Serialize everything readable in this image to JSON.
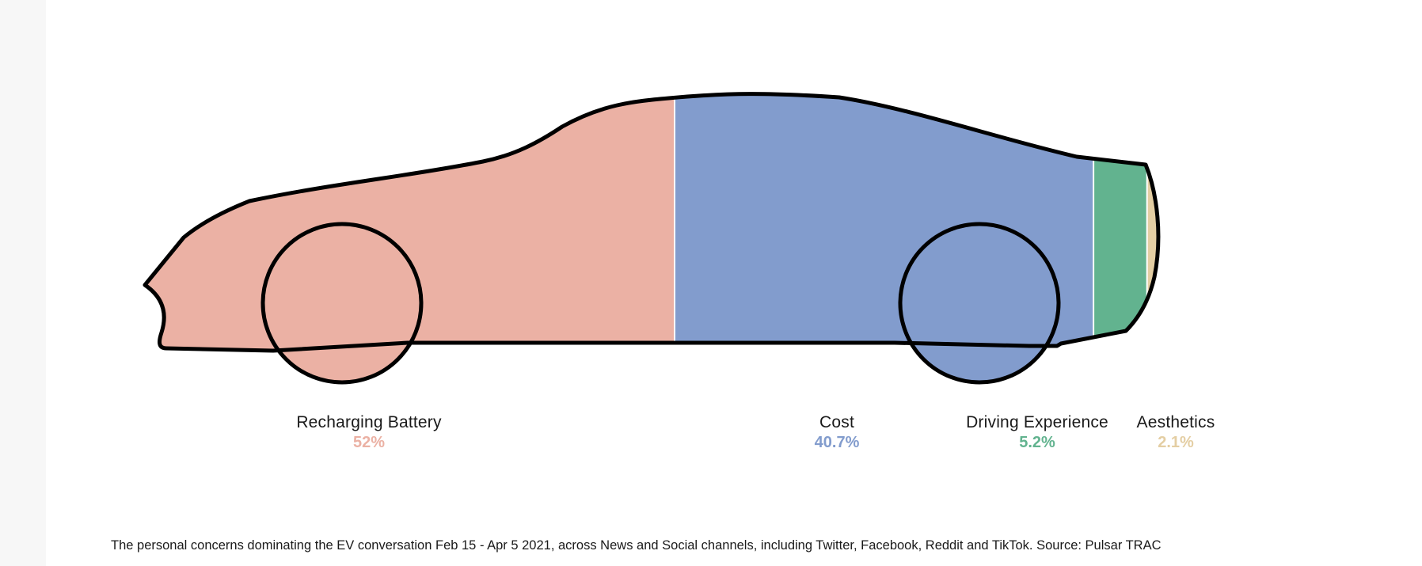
{
  "chart_data": {
    "type": "bar",
    "orientation": "horizontal-stacked",
    "title": "",
    "xlabel": "",
    "ylabel": "",
    "categories": [
      "Recharging Battery",
      "Cost",
      "Driving Experience",
      "Aesthetics"
    ],
    "values": [
      52,
      40.7,
      5.2,
      2.1
    ],
    "value_labels": [
      "52%",
      "40.7%",
      "5.2%",
      "2.1%"
    ],
    "colors": [
      "#ebb1a4",
      "#829ccd",
      "#62b38f",
      "#e4ceA3"
    ],
    "xlim": [
      0,
      100
    ],
    "grid": false,
    "legend": "none"
  },
  "caption": "The personal concerns dominating the EV conversation Feb 15 - Apr 5 2021, across News and Social channels, including Twitter, Facebook, Reddit and TikTok. Source: Pulsar TRAC"
}
